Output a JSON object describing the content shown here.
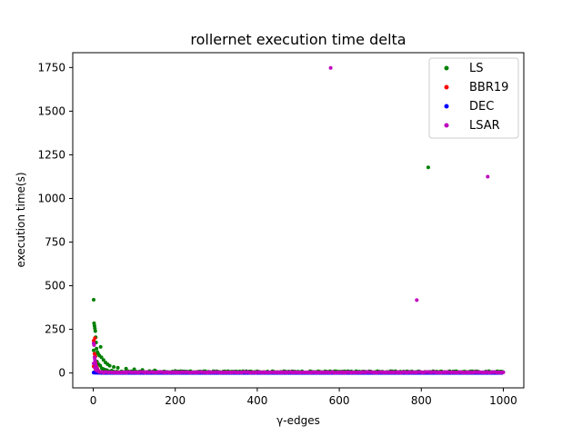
{
  "chart_data": {
    "type": "scatter",
    "title": "rollernet execution time delta",
    "xlabel": "γ-edges",
    "ylabel": "execution time(s)",
    "xlim": [
      -50,
      1050
    ],
    "ylim": [
      -85,
      1835
    ],
    "xticks": [
      0,
      200,
      400,
      600,
      800,
      1000
    ],
    "yticks": [
      0,
      250,
      500,
      750,
      1000,
      1250,
      1500,
      1750
    ],
    "grid": false,
    "legend_position": "top-right",
    "series": [
      {
        "name": "LS",
        "color": "#008000",
        "dense": {
          "x_start": 1,
          "x_end": 1000,
          "step": 4,
          "y_base": 3,
          "y_peak": 130,
          "decay": 12,
          "y_floor": 8
        },
        "points": [
          [
            1,
            420
          ],
          [
            2,
            285
          ],
          [
            3,
            270
          ],
          [
            4,
            255
          ],
          [
            5,
            240
          ],
          [
            6,
            205
          ],
          [
            7,
            175
          ],
          [
            8,
            140
          ],
          [
            10,
            120
          ],
          [
            12,
            110
          ],
          [
            15,
            100
          ],
          [
            18,
            150
          ],
          [
            20,
            90
          ],
          [
            25,
            75
          ],
          [
            30,
            60
          ],
          [
            35,
            50
          ],
          [
            40,
            42
          ],
          [
            50,
            35
          ],
          [
            60,
            30
          ],
          [
            80,
            25
          ],
          [
            100,
            22
          ],
          [
            120,
            18
          ],
          [
            150,
            15
          ],
          [
            200,
            12
          ],
          [
            300,
            10
          ],
          [
            400,
            10
          ],
          [
            500,
            8
          ],
          [
            600,
            8
          ],
          [
            700,
            7
          ],
          [
            817,
            1178
          ],
          [
            900,
            6
          ],
          [
            1000,
            5
          ]
        ]
      },
      {
        "name": "BBR19",
        "color": "#ff0000",
        "dense": {
          "x_start": 1,
          "x_end": 1000,
          "step": 5,
          "y_base": 2,
          "y_peak": 40,
          "decay": 6,
          "y_floor": 2
        },
        "points": [
          [
            1,
            185
          ],
          [
            2,
            170
          ],
          [
            3,
            110
          ],
          [
            4,
            200
          ],
          [
            5,
            95
          ],
          [
            6,
            60
          ],
          [
            8,
            40
          ],
          [
            10,
            25
          ],
          [
            12,
            15
          ]
        ]
      },
      {
        "name": "DEC",
        "color": "#0000ff",
        "dense": {
          "x_start": 1,
          "x_end": 1000,
          "step": 5,
          "y_base": 0,
          "y_peak": 3,
          "decay": 10,
          "y_floor": 0
        },
        "points": [
          [
            1,
            2
          ],
          [
            3,
            3
          ],
          [
            5,
            2
          ]
        ]
      },
      {
        "name": "LSAR",
        "color": "#bf00bf",
        "dense": {
          "x_start": 1,
          "x_end": 1000,
          "step": 3,
          "y_base": 2,
          "y_peak": 60,
          "decay": 5,
          "y_floor": 4
        },
        "points": [
          [
            1,
            170
          ],
          [
            2,
            160
          ],
          [
            3,
            90
          ],
          [
            4,
            75
          ],
          [
            5,
            60
          ],
          [
            6,
            45
          ],
          [
            8,
            30
          ],
          [
            10,
            20
          ],
          [
            579,
            1748
          ],
          [
            789,
            418
          ],
          [
            962,
            1125
          ]
        ]
      }
    ]
  }
}
